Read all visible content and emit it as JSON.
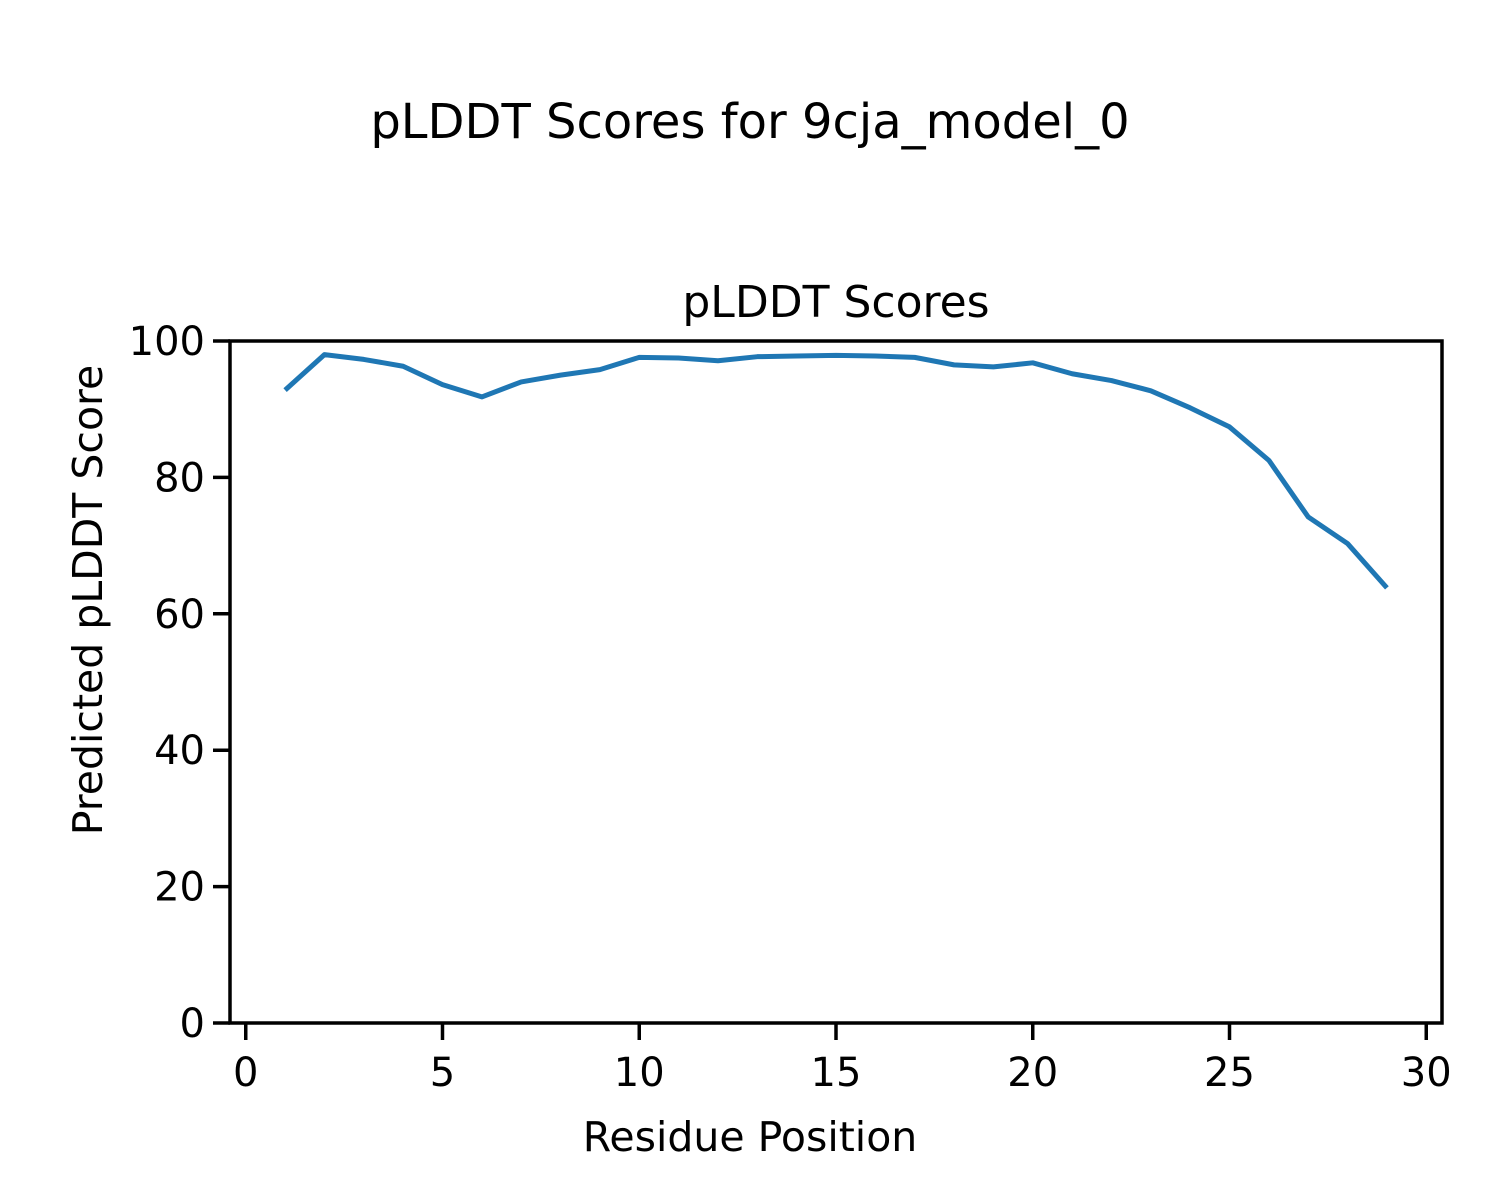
{
  "figure": {
    "suptitle": "pLDDT Scores for 9cja_model_0",
    "background_color": "#ffffff",
    "text_color": "#000000"
  },
  "chart_data": {
    "type": "line",
    "title": "pLDDT Scores",
    "xlabel": "Residue Position",
    "ylabel": "Predicted pLDDT Score",
    "x": [
      1,
      2,
      3,
      4,
      5,
      6,
      7,
      8,
      9,
      10,
      11,
      12,
      13,
      14,
      15,
      16,
      17,
      18,
      19,
      20,
      21,
      22,
      23,
      24,
      25,
      26,
      27,
      28,
      29
    ],
    "series": [
      {
        "name": "pLDDT",
        "color": "#1f77b4",
        "values": [
          92.8,
          98.0,
          97.3,
          96.3,
          93.6,
          91.8,
          94.0,
          95.0,
          95.8,
          97.6,
          97.5,
          97.1,
          97.7,
          97.8,
          97.9,
          97.8,
          97.6,
          96.5,
          96.2,
          96.8,
          95.2,
          94.2,
          92.7,
          90.2,
          87.4,
          82.5,
          74.2,
          70.3,
          63.8
        ]
      }
    ],
    "xlim": [
      -0.4,
      30.4
    ],
    "ylim": [
      0,
      100
    ],
    "xticks": [
      0,
      5,
      10,
      15,
      20,
      25,
      30
    ],
    "yticks": [
      0,
      20,
      40,
      60,
      80,
      100
    ],
    "grid": false,
    "legend_position": "none",
    "line_width": 5,
    "spine_color": "#000000"
  }
}
